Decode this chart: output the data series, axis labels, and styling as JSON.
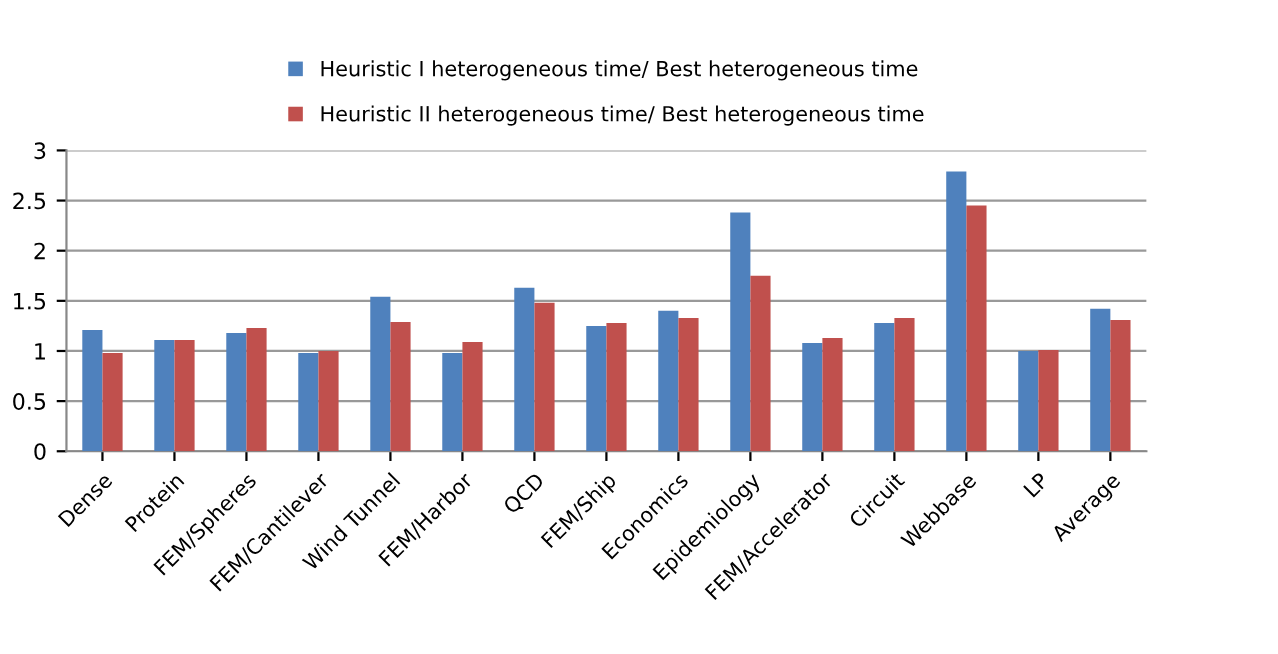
{
  "chart_data": {
    "type": "bar",
    "categories": [
      "Dense",
      "Protein",
      "FEM/Spheres",
      "FEM/Cantilever",
      "Wind Tunnel",
      "FEM/Harbor",
      "QCD",
      "FEM/Ship",
      "Economics",
      "Epidemiology",
      "FEM/Accelerator",
      "Circuit",
      "Webbase",
      "LP",
      "Average"
    ],
    "series": [
      {
        "name": "Heuristic I heterogeneous time/ Best heterogeneous time",
        "color": "#4f81bd",
        "values": [
          1.21,
          1.11,
          1.18,
          0.98,
          1.54,
          0.98,
          1.63,
          1.25,
          1.4,
          2.38,
          1.08,
          1.28,
          2.79,
          1.0,
          1.42
        ]
      },
      {
        "name": "Heuristic II heterogeneous time/ Best heterogeneous time",
        "color": "#c0504d",
        "values": [
          0.98,
          1.11,
          1.23,
          1.0,
          1.29,
          1.09,
          1.48,
          1.28,
          1.33,
          1.75,
          1.13,
          1.33,
          2.45,
          1.01,
          1.31
        ]
      }
    ],
    "ylim": [
      0,
      3
    ],
    "yticks": [
      0,
      0.5,
      1,
      1.5,
      2,
      2.5,
      3
    ],
    "grid": "y",
    "legend": "top"
  }
}
